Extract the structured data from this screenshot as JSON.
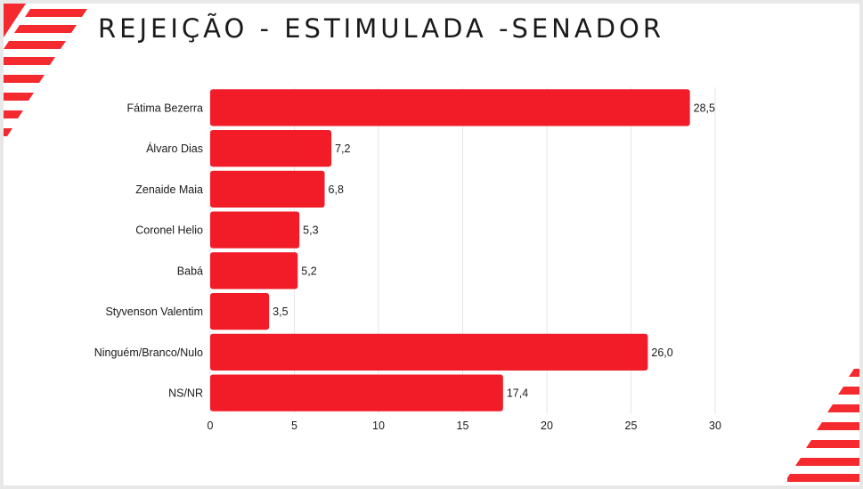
{
  "slide": {
    "title": "REJEIÇÃO - ESTIMULADA -SENADOR"
  },
  "colors": {
    "bar": "#f21c28",
    "accent": "#f52a2f",
    "grid": "#e6e6e6",
    "text": "#1a1a1a"
  },
  "chart_data": {
    "type": "bar",
    "orientation": "horizontal",
    "title": "",
    "categories": [
      "Fátima Bezerra",
      "Álvaro Dias",
      "Zenaide Maia",
      "Coronel Helio",
      "Babá",
      "Styvenson Valentim",
      "Ninguém/Branco/Nulo",
      "NS/NR"
    ],
    "values": [
      28.5,
      7.2,
      6.8,
      5.3,
      5.2,
      3.5,
      26.0,
      17.4
    ],
    "value_labels": [
      "28,5",
      "7,2",
      "6,8",
      "5,3",
      "5,2",
      "3,5",
      "26,0",
      "17,4"
    ],
    "xlim": [
      0,
      30
    ],
    "xticks": [
      0,
      5,
      10,
      15,
      20,
      25,
      30
    ],
    "xlabel": "",
    "ylabel": "",
    "grid": "vertical",
    "legend": "none"
  }
}
